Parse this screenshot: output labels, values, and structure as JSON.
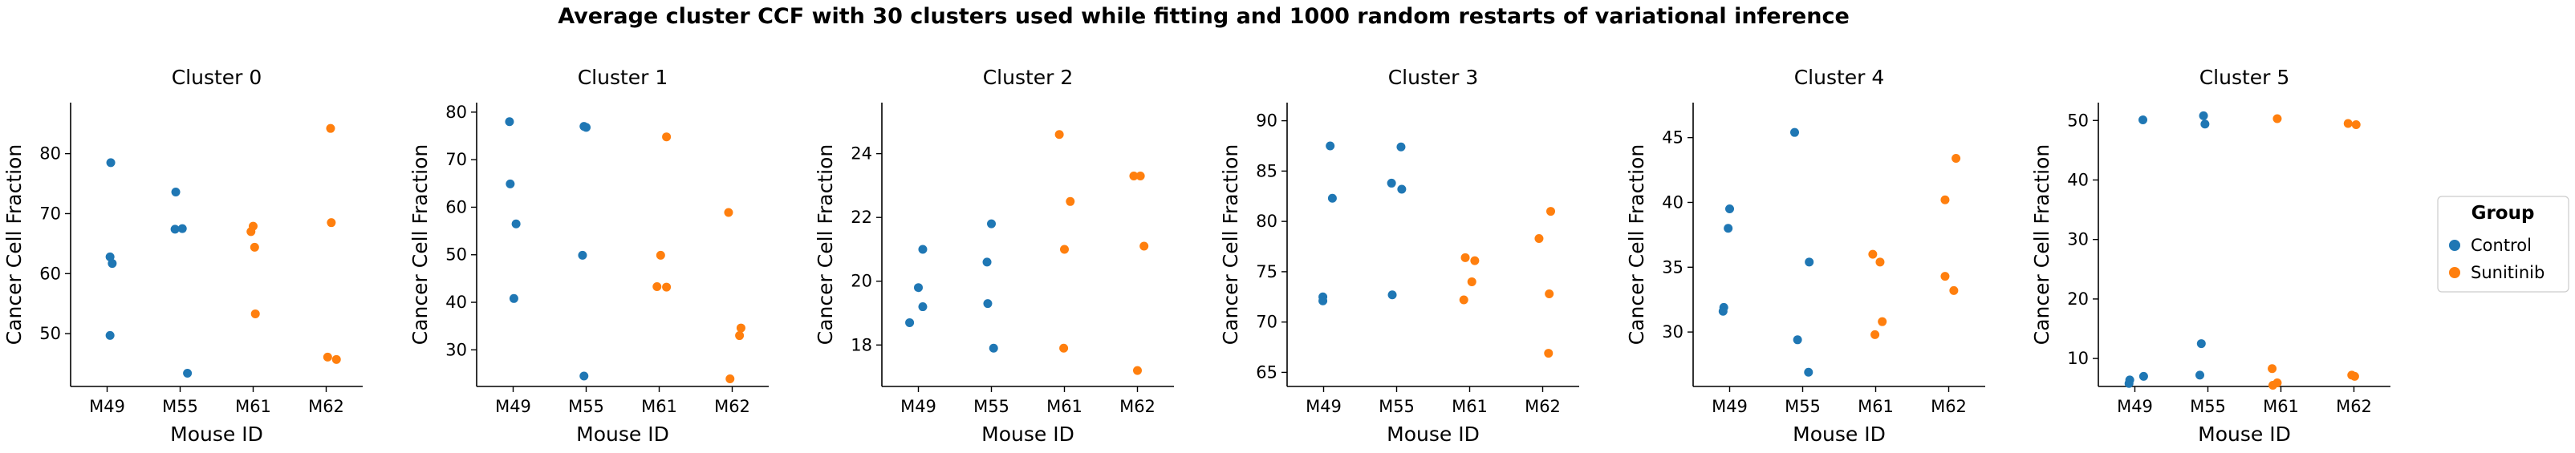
{
  "suptitle": "Average cluster CCF with 30 clusters used while fitting and 1000 random restarts of variational inference",
  "legend": {
    "title": "Group",
    "placement": "right",
    "entries": [
      {
        "label": "Control",
        "color": "#1f77b4"
      },
      {
        "label": "Sunitinib",
        "color": "#ff7f0e"
      }
    ]
  },
  "chart_data": [
    {
      "type": "scatter",
      "title": "Cluster 0",
      "xlabel": "Mouse ID",
      "ylabel": "Cancer Cell Fraction",
      "categories": [
        "M49",
        "M55",
        "M61",
        "M62"
      ],
      "ylim": [
        41.2,
        88.5
      ],
      "yticks": [
        50,
        60,
        70,
        80
      ],
      "series": [
        {
          "name": "Control",
          "color": "#1f77b4",
          "points": [
            {
              "x": "M49",
              "jitter": 0.05,
              "y": 78.5
            },
            {
              "x": "M49",
              "jitter": 0.04,
              "y": 62.8
            },
            {
              "x": "M49",
              "jitter": 0.07,
              "y": 61.7
            },
            {
              "x": "M49",
              "jitter": 0.04,
              "y": 49.7
            },
            {
              "x": "M55",
              "jitter": -0.06,
              "y": 73.6
            },
            {
              "x": "M55",
              "jitter": -0.07,
              "y": 67.4
            },
            {
              "x": "M55",
              "jitter": 0.03,
              "y": 67.5
            },
            {
              "x": "M55",
              "jitter": 0.1,
              "y": 43.4
            }
          ]
        },
        {
          "name": "Sunitinib",
          "color": "#ff7f0e",
          "points": [
            {
              "x": "M61",
              "jitter": -0.03,
              "y": 67.0
            },
            {
              "x": "M61",
              "jitter": 0.0,
              "y": 67.9
            },
            {
              "x": "M61",
              "jitter": 0.02,
              "y": 64.4
            },
            {
              "x": "M61",
              "jitter": 0.03,
              "y": 53.3
            },
            {
              "x": "M62",
              "jitter": 0.06,
              "y": 84.2
            },
            {
              "x": "M62",
              "jitter": 0.07,
              "y": 68.5
            },
            {
              "x": "M62",
              "jitter": 0.02,
              "y": 46.1
            },
            {
              "x": "M62",
              "jitter": 0.14,
              "y": 45.7
            }
          ]
        }
      ]
    },
    {
      "type": "scatter",
      "title": "Cluster 1",
      "xlabel": "Mouse ID",
      "ylabel": "Cancer Cell Fraction",
      "categories": [
        "M49",
        "M55",
        "M61",
        "M62"
      ],
      "ylim": [
        22.3,
        82.0
      ],
      "yticks": [
        30,
        40,
        50,
        60,
        70,
        80
      ],
      "series": [
        {
          "name": "Control",
          "color": "#1f77b4",
          "points": [
            {
              "x": "M49",
              "jitter": -0.05,
              "y": 78.0
            },
            {
              "x": "M49",
              "jitter": -0.04,
              "y": 64.9
            },
            {
              "x": "M49",
              "jitter": 0.04,
              "y": 56.5
            },
            {
              "x": "M49",
              "jitter": 0.01,
              "y": 40.8
            },
            {
              "x": "M55",
              "jitter": 0.0,
              "y": 76.8
            },
            {
              "x": "M55",
              "jitter": -0.03,
              "y": 77.0
            },
            {
              "x": "M55",
              "jitter": -0.05,
              "y": 49.9
            },
            {
              "x": "M55",
              "jitter": -0.03,
              "y": 24.5
            }
          ]
        },
        {
          "name": "Sunitinib",
          "color": "#ff7f0e",
          "points": [
            {
              "x": "M61",
              "jitter": 0.1,
              "y": 74.8
            },
            {
              "x": "M61",
              "jitter": 0.02,
              "y": 49.9
            },
            {
              "x": "M61",
              "jitter": -0.03,
              "y": 43.3
            },
            {
              "x": "M61",
              "jitter": 0.1,
              "y": 43.2
            },
            {
              "x": "M62",
              "jitter": -0.05,
              "y": 58.9
            },
            {
              "x": "M62",
              "jitter": 0.12,
              "y": 34.6
            },
            {
              "x": "M62",
              "jitter": 0.1,
              "y": 33.0
            },
            {
              "x": "M62",
              "jitter": -0.03,
              "y": 23.9
            }
          ]
        }
      ]
    },
    {
      "type": "scatter",
      "title": "Cluster 2",
      "xlabel": "Mouse ID",
      "ylabel": "Cancer Cell Fraction",
      "categories": [
        "M49",
        "M55",
        "M61",
        "M62"
      ],
      "ylim": [
        16.7,
        25.6
      ],
      "yticks": [
        18,
        20,
        22,
        24
      ],
      "series": [
        {
          "name": "Control",
          "color": "#1f77b4",
          "points": [
            {
              "x": "M49",
              "jitter": 0.06,
              "y": 21.0
            },
            {
              "x": "M49",
              "jitter": 0.0,
              "y": 19.8
            },
            {
              "x": "M49",
              "jitter": 0.06,
              "y": 19.2
            },
            {
              "x": "M49",
              "jitter": -0.12,
              "y": 18.7
            },
            {
              "x": "M55",
              "jitter": 0.0,
              "y": 21.8
            },
            {
              "x": "M55",
              "jitter": -0.06,
              "y": 20.6
            },
            {
              "x": "M55",
              "jitter": -0.05,
              "y": 19.3
            },
            {
              "x": "M55",
              "jitter": 0.03,
              "y": 17.9
            }
          ]
        },
        {
          "name": "Sunitinib",
          "color": "#ff7f0e",
          "points": [
            {
              "x": "M61",
              "jitter": -0.07,
              "y": 24.6
            },
            {
              "x": "M61",
              "jitter": 0.08,
              "y": 22.5
            },
            {
              "x": "M61",
              "jitter": 0.0,
              "y": 21.0
            },
            {
              "x": "M61",
              "jitter": -0.01,
              "y": 17.9
            },
            {
              "x": "M62",
              "jitter": -0.05,
              "y": 23.3
            },
            {
              "x": "M62",
              "jitter": 0.04,
              "y": 23.3
            },
            {
              "x": "M62",
              "jitter": 0.09,
              "y": 21.1
            },
            {
              "x": "M62",
              "jitter": 0.0,
              "y": 17.2
            }
          ]
        }
      ]
    },
    {
      "type": "scatter",
      "title": "Cluster 3",
      "xlabel": "Mouse ID",
      "ylabel": "Cancer Cell Fraction",
      "categories": [
        "M49",
        "M55",
        "M61",
        "M62"
      ],
      "ylim": [
        63.6,
        91.8
      ],
      "yticks": [
        65,
        70,
        75,
        80,
        85,
        90
      ],
      "series": [
        {
          "name": "Control",
          "color": "#1f77b4",
          "points": [
            {
              "x": "M49",
              "jitter": 0.09,
              "y": 87.5
            },
            {
              "x": "M49",
              "jitter": 0.12,
              "y": 82.3
            },
            {
              "x": "M49",
              "jitter": -0.01,
              "y": 72.5
            },
            {
              "x": "M49",
              "jitter": -0.01,
              "y": 72.1
            },
            {
              "x": "M55",
              "jitter": 0.06,
              "y": 87.4
            },
            {
              "x": "M55",
              "jitter": -0.07,
              "y": 83.8
            },
            {
              "x": "M55",
              "jitter": 0.07,
              "y": 83.2
            },
            {
              "x": "M55",
              "jitter": -0.06,
              "y": 72.7
            }
          ]
        },
        {
          "name": "Sunitinib",
          "color": "#ff7f0e",
          "points": [
            {
              "x": "M61",
              "jitter": -0.06,
              "y": 76.4
            },
            {
              "x": "M61",
              "jitter": 0.07,
              "y": 76.1
            },
            {
              "x": "M61",
              "jitter": 0.03,
              "y": 74.0
            },
            {
              "x": "M61",
              "jitter": -0.08,
              "y": 72.2
            },
            {
              "x": "M62",
              "jitter": 0.11,
              "y": 81.0
            },
            {
              "x": "M62",
              "jitter": -0.05,
              "y": 78.3
            },
            {
              "x": "M62",
              "jitter": 0.09,
              "y": 72.8
            },
            {
              "x": "M62",
              "jitter": 0.08,
              "y": 66.9
            }
          ]
        }
      ]
    },
    {
      "type": "scatter",
      "title": "Cluster 4",
      "xlabel": "Mouse ID",
      "ylabel": "Cancer Cell Fraction",
      "categories": [
        "M49",
        "M55",
        "M61",
        "M62"
      ],
      "ylim": [
        25.8,
        47.7
      ],
      "yticks": [
        30,
        35,
        40,
        45
      ],
      "series": [
        {
          "name": "Control",
          "color": "#1f77b4",
          "points": [
            {
              "x": "M49",
              "jitter": 0.0,
              "y": 39.5
            },
            {
              "x": "M49",
              "jitter": -0.02,
              "y": 38.0
            },
            {
              "x": "M49",
              "jitter": -0.08,
              "y": 31.9
            },
            {
              "x": "M49",
              "jitter": -0.09,
              "y": 31.6
            },
            {
              "x": "M55",
              "jitter": -0.11,
              "y": 45.4
            },
            {
              "x": "M55",
              "jitter": 0.09,
              "y": 35.4
            },
            {
              "x": "M55",
              "jitter": -0.07,
              "y": 29.4
            },
            {
              "x": "M55",
              "jitter": 0.08,
              "y": 26.9
            }
          ]
        },
        {
          "name": "Sunitinib",
          "color": "#ff7f0e",
          "points": [
            {
              "x": "M61",
              "jitter": -0.04,
              "y": 36.0
            },
            {
              "x": "M61",
              "jitter": 0.06,
              "y": 35.4
            },
            {
              "x": "M61",
              "jitter": 0.09,
              "y": 30.8
            },
            {
              "x": "M61",
              "jitter": -0.01,
              "y": 29.8
            },
            {
              "x": "M62",
              "jitter": 0.1,
              "y": 43.4
            },
            {
              "x": "M62",
              "jitter": -0.05,
              "y": 40.2
            },
            {
              "x": "M62",
              "jitter": -0.05,
              "y": 34.3
            },
            {
              "x": "M62",
              "jitter": 0.07,
              "y": 33.2
            }
          ]
        }
      ]
    },
    {
      "type": "scatter",
      "title": "Cluster 5",
      "xlabel": "Mouse ID",
      "ylabel": "Cancer Cell Fraction",
      "categories": [
        "M49",
        "M55",
        "M61",
        "M62"
      ],
      "ylim": [
        5.3,
        53.0
      ],
      "yticks": [
        10,
        20,
        30,
        40,
        50
      ],
      "series": [
        {
          "name": "Control",
          "color": "#1f77b4",
          "points": [
            {
              "x": "M49",
              "jitter": 0.11,
              "y": 50.1
            },
            {
              "x": "M49",
              "jitter": 0.12,
              "y": 7.0
            },
            {
              "x": "M49",
              "jitter": -0.07,
              "y": 6.4
            },
            {
              "x": "M49",
              "jitter": -0.08,
              "y": 5.8
            },
            {
              "x": "M55",
              "jitter": -0.06,
              "y": 50.8
            },
            {
              "x": "M55",
              "jitter": -0.04,
              "y": 49.4
            },
            {
              "x": "M55",
              "jitter": -0.09,
              "y": 12.5
            },
            {
              "x": "M55",
              "jitter": -0.11,
              "y": 7.2
            }
          ]
        },
        {
          "name": "Sunitinib",
          "color": "#ff7f0e",
          "points": [
            {
              "x": "M61",
              "jitter": -0.05,
              "y": 50.3
            },
            {
              "x": "M61",
              "jitter": -0.12,
              "y": 8.3
            },
            {
              "x": "M61",
              "jitter": -0.05,
              "y": 5.9
            },
            {
              "x": "M61",
              "jitter": -0.11,
              "y": 5.5
            },
            {
              "x": "M62",
              "jitter": -0.08,
              "y": 49.5
            },
            {
              "x": "M62",
              "jitter": 0.03,
              "y": 49.3
            },
            {
              "x": "M62",
              "jitter": 0.01,
              "y": 7.0
            },
            {
              "x": "M62",
              "jitter": -0.03,
              "y": 7.2
            }
          ]
        }
      ]
    }
  ]
}
